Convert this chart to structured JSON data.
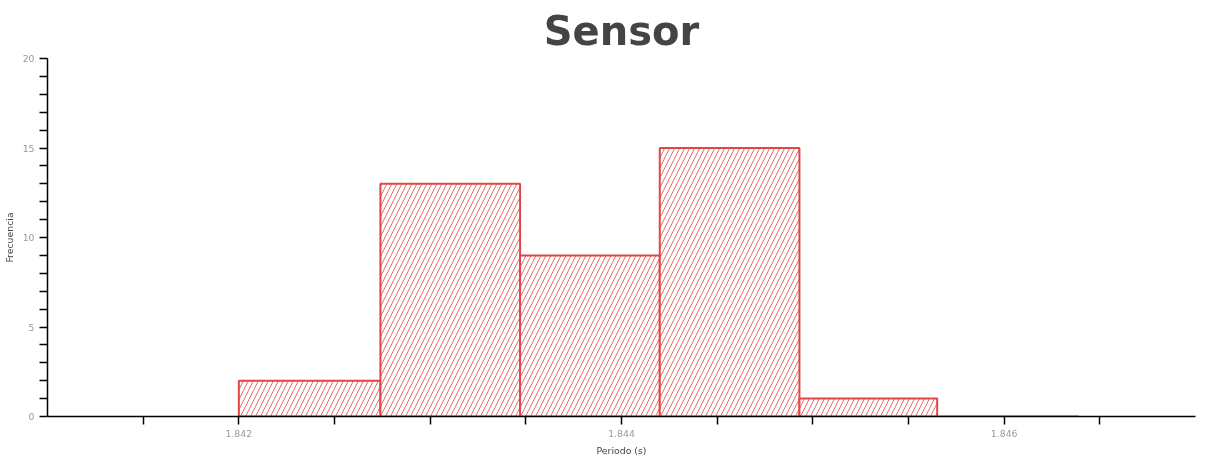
{
  "chart_data": {
    "type": "histogram",
    "title": "Sensor",
    "xlabel": "Periodo (s)",
    "ylabel": "Frecuencia",
    "bins": [
      1.842,
      1.84274,
      1.84347,
      1.8442,
      1.84493,
      1.84565,
      1.84639
    ],
    "values": [
      2,
      13,
      9,
      15,
      1,
      0
    ],
    "color": "#e04646",
    "xlim": [
      1.841,
      1.847
    ],
    "xticks": [
      {
        "value": 1.8415,
        "label": null
      },
      1.842,
      {
        "value": 1.8425,
        "label": null
      },
      {
        "value": 1.843,
        "label": null
      },
      {
        "value": 1.8435,
        "label": null
      },
      1.844,
      {
        "value": 1.8445,
        "label": null
      },
      {
        "value": 1.845,
        "label": null
      },
      {
        "value": 1.8455,
        "label": null
      },
      1.846,
      {
        "value": 1.8465,
        "label": null
      }
    ],
    "ylim": [
      0,
      20
    ],
    "yticks": [
      0,
      {
        "value": 1,
        "label": null
      },
      {
        "value": 2,
        "label": null
      },
      {
        "value": 3,
        "label": null
      },
      {
        "value": 4,
        "label": null
      },
      5,
      {
        "value": 6,
        "label": null
      },
      {
        "value": 7,
        "label": null
      },
      {
        "value": 8,
        "label": null
      },
      {
        "value": 9,
        "label": null
      },
      10,
      {
        "value": 11,
        "label": null
      },
      {
        "value": 12,
        "label": null
      },
      {
        "value": 13,
        "label": null
      },
      {
        "value": 14,
        "label": null
      },
      15,
      {
        "value": 16,
        "label": null
      },
      {
        "value": 17,
        "label": null
      },
      {
        "value": 18,
        "label": null
      },
      {
        "value": 19,
        "label": null
      },
      20
    ],
    "grid": false
  }
}
